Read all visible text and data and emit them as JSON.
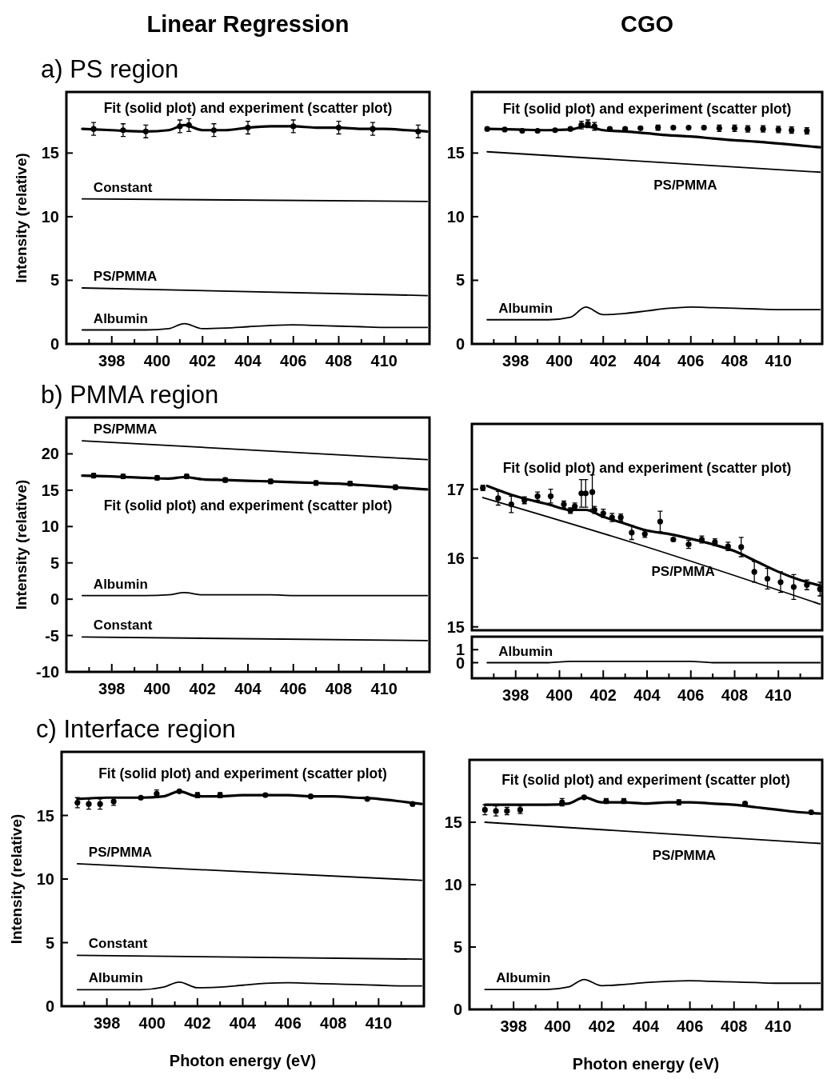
{
  "chart_data": [
    {
      "type": "line",
      "title": "Linear Regression",
      "subtitle": "a) PS region",
      "ylabel": "Intensity (relative)",
      "annotations": [
        "Fit (solid plot) and experiment (scatter plot)"
      ],
      "x": [
        396.7,
        398,
        399.5,
        400.5,
        401.2,
        402,
        403,
        404,
        405,
        406,
        407,
        408,
        409,
        410,
        411,
        411.9
      ],
      "xlim": [
        396,
        412
      ],
      "xticks": [
        {
          "value": 397,
          "label": null
        },
        398,
        {
          "value": 399,
          "label": null
        },
        400,
        {
          "value": 401,
          "label": null
        },
        402,
        {
          "value": 403,
          "label": null
        },
        404,
        {
          "value": 405,
          "label": null
        },
        406,
        {
          "value": 407,
          "label": null
        },
        408,
        {
          "value": 409,
          "label": null
        },
        410,
        {
          "value": 411,
          "label": null
        }
      ],
      "ylim": [
        0,
        19.8
      ],
      "yticks": [
        0,
        5,
        10,
        15
      ],
      "series": [
        {
          "color": "#000000",
          "values": [
            16.9,
            16.8,
            16.7,
            16.8,
            17.2,
            16.8,
            16.8,
            17.0,
            17.1,
            17.1,
            17.0,
            17.0,
            16.9,
            16.9,
            16.8,
            16.7
          ]
        },
        {
          "type": "scatter",
          "marker": "circle",
          "color": "#000000",
          "x": [
            397.2,
            398.5,
            399.5,
            401,
            401.4,
            402.5,
            404,
            406,
            408,
            409.5,
            411.5
          ],
          "values": [
            16.9,
            16.8,
            16.7,
            17.1,
            17.2,
            16.8,
            17.0,
            17.1,
            17.0,
            16.9,
            16.7
          ],
          "errors": [
            0.5,
            0.5,
            0.5,
            0.5,
            0.5,
            0.5,
            0.5,
            0.5,
            0.5,
            0.5,
            0.5
          ]
        },
        {
          "name": "Constant",
          "color": "#000000",
          "x": [
            396.7,
            411.9
          ],
          "values": [
            11.4,
            11.2
          ]
        },
        {
          "name": "PS/PMMA",
          "color": "#000000",
          "x": [
            396.7,
            411.9
          ],
          "values": [
            4.4,
            3.8
          ]
        },
        {
          "name": "Albumin",
          "color": "#000000",
          "values": [
            1.1,
            1.1,
            1.1,
            1.2,
            1.6,
            1.2,
            1.25,
            1.35,
            1.45,
            1.5,
            1.45,
            1.4,
            1.35,
            1.3,
            1.3,
            1.3
          ]
        }
      ]
    },
    {
      "type": "line",
      "title": "CGO",
      "annotations": [
        "Fit (solid plot) and experiment (scatter plot)"
      ],
      "x": [
        396.7,
        398,
        399.5,
        400.5,
        401.2,
        402,
        403,
        404,
        405,
        406,
        407,
        408,
        409,
        410,
        411,
        411.9
      ],
      "xlim": [
        396,
        412
      ],
      "xticks": [
        {
          "value": 397,
          "label": null
        },
        398,
        {
          "value": 399,
          "label": null
        },
        400,
        {
          "value": 401,
          "label": null
        },
        402,
        {
          "value": 403,
          "label": null
        },
        404,
        {
          "value": 405,
          "label": null
        },
        406,
        {
          "value": 407,
          "label": null
        },
        408,
        {
          "value": 409,
          "label": null
        },
        410,
        {
          "value": 411,
          "label": null
        }
      ],
      "ylim": [
        0,
        19.8
      ],
      "yticks": [
        0,
        5,
        10,
        15
      ],
      "series": [
        {
          "color": "#000000",
          "values": [
            16.9,
            16.85,
            16.8,
            16.85,
            17.1,
            16.8,
            16.7,
            16.55,
            16.4,
            16.3,
            16.15,
            16.0,
            15.9,
            15.75,
            15.6,
            15.45
          ]
        },
        {
          "type": "scatter",
          "marker": "circle",
          "color": "#000000",
          "x": [
            396.7,
            397.5,
            398.3,
            399,
            399.8,
            400.5,
            401,
            401.3,
            401.6,
            402.3,
            403,
            403.7,
            404.5,
            405.2,
            405.9,
            406.6,
            407.3,
            408,
            408.6,
            409.3,
            410,
            410.6,
            411.3
          ],
          "values": [
            16.9,
            16.85,
            16.75,
            16.75,
            16.8,
            16.9,
            17.2,
            17.3,
            17.1,
            16.9,
            16.9,
            16.95,
            17.0,
            17.0,
            17.0,
            17.0,
            16.95,
            16.95,
            16.9,
            16.9,
            16.85,
            16.8,
            16.75
          ],
          "errors": [
            0.1,
            0.1,
            0.1,
            0.1,
            0.1,
            0.1,
            0.3,
            0.3,
            0.3,
            0.1,
            0.1,
            0.1,
            0.2,
            0.1,
            0.1,
            0.1,
            0.25,
            0.25,
            0.25,
            0.25,
            0.25,
            0.25,
            0.25
          ]
        },
        {
          "name": "PS/PMMA",
          "color": "#000000",
          "x": [
            396.7,
            411.9
          ],
          "values": [
            15.1,
            13.5
          ]
        },
        {
          "name": "Albumin",
          "color": "#000000",
          "values": [
            1.9,
            1.9,
            1.9,
            2.1,
            2.9,
            2.3,
            2.4,
            2.6,
            2.8,
            2.9,
            2.85,
            2.8,
            2.75,
            2.7,
            2.7,
            2.7
          ]
        }
      ]
    },
    {
      "type": "line",
      "subtitle": "b) PMMA region",
      "ylabel": "Intensity (relative)",
      "annotations": [
        "Fit (solid plot) and experiment (scatter plot)"
      ],
      "x": [
        396.7,
        398,
        399.5,
        400.5,
        401.2,
        402,
        403,
        404,
        405,
        406,
        407,
        408,
        409,
        410,
        411,
        411.9
      ],
      "xlim": [
        396,
        412
      ],
      "xticks": [
        {
          "value": 397,
          "label": null
        },
        398,
        {
          "value": 399,
          "label": null
        },
        400,
        {
          "value": 401,
          "label": null
        },
        402,
        {
          "value": 403,
          "label": null
        },
        404,
        {
          "value": 405,
          "label": null
        },
        406,
        {
          "value": 407,
          "label": null
        },
        408,
        {
          "value": 409,
          "label": null
        },
        410,
        {
          "value": 411,
          "label": null
        }
      ],
      "ylim": [
        -10,
        25
      ],
      "yticks": [
        -10,
        -5,
        0,
        5,
        10,
        15,
        20
      ],
      "series": [
        {
          "color": "#000000",
          "values": [
            17.0,
            16.9,
            16.7,
            16.6,
            16.8,
            16.5,
            16.4,
            16.3,
            16.2,
            16.1,
            16.0,
            15.9,
            15.7,
            15.5,
            15.3,
            15.1
          ]
        },
        {
          "type": "scatter",
          "marker": "circle",
          "color": "#000000",
          "x": [
            397.2,
            398.5,
            400,
            401.3,
            403,
            405,
            407,
            408.5,
            410.5
          ],
          "values": [
            17.0,
            16.9,
            16.7,
            16.9,
            16.4,
            16.2,
            16.0,
            15.9,
            15.4
          ],
          "errors": [
            0.3,
            0.3,
            0.3,
            0.3,
            0.3,
            0.3,
            0.3,
            0.3,
            0.3
          ]
        },
        {
          "name": "PS/PMMA",
          "color": "#000000",
          "x": [
            396.7,
            411.9
          ],
          "values": [
            21.8,
            19.2
          ]
        },
        {
          "name": "Albumin",
          "color": "#000000",
          "values": [
            0.5,
            0.5,
            0.5,
            0.6,
            0.9,
            0.6,
            0.6,
            0.6,
            0.6,
            0.5,
            0.5,
            0.5,
            0.5,
            0.5,
            0.5,
            0.5
          ]
        },
        {
          "name": "Constant",
          "color": "#000000",
          "x": [
            396.7,
            411.9
          ],
          "values": [
            -5.2,
            -5.7
          ]
        }
      ]
    },
    {
      "type": "line",
      "tick_labels": "y",
      "annotations": [
        "Fit (solid plot) and experiment (scatter plot)"
      ],
      "x": [
        396.7,
        398,
        399.5,
        400.5,
        401.2,
        402,
        403,
        404,
        405,
        406,
        407,
        408,
        409,
        410,
        411,
        411.9
      ],
      "xlim": [
        396,
        412
      ],
      "ylim": [
        14.95,
        17.95
      ],
      "yticks": [
        15,
        16,
        17
      ],
      "series": [
        {
          "color": "#000000",
          "values": [
            17.05,
            16.9,
            16.78,
            16.7,
            16.7,
            16.6,
            16.5,
            16.4,
            16.35,
            16.28,
            16.2,
            16.1,
            15.95,
            15.8,
            15.68,
            15.6
          ]
        },
        {
          "type": "scatter",
          "marker": "circle",
          "color": "#000000",
          "x": [
            396.5,
            397.2,
            397.8,
            398.4,
            399.0,
            399.6,
            400.2,
            400.5,
            400.7,
            401.0,
            401.2,
            401.5,
            401.6,
            402.0,
            402.4,
            402.8,
            403.3,
            403.9,
            404.6,
            405.2,
            405.9,
            406.5,
            407.1,
            407.7,
            408.3,
            408.9,
            409.5,
            410.1,
            410.7,
            411.3,
            411.9
          ],
          "values": [
            17.02,
            16.87,
            16.78,
            16.84,
            16.9,
            16.9,
            16.78,
            16.69,
            16.75,
            16.94,
            16.94,
            16.96,
            16.7,
            16.65,
            16.59,
            16.59,
            16.37,
            16.35,
            16.53,
            16.27,
            16.2,
            16.27,
            16.23,
            16.17,
            16.16,
            15.8,
            15.7,
            15.65,
            15.58,
            15.61,
            15.55
          ],
          "errors": [
            0.04,
            0.1,
            0.12,
            0.05,
            0.06,
            0.1,
            0.05,
            0.04,
            0.05,
            0.2,
            0.2,
            0.25,
            0.05,
            0.06,
            0.06,
            0.05,
            0.1,
            0.05,
            0.15,
            0.02,
            0.06,
            0.05,
            0.05,
            0.06,
            0.14,
            0.15,
            0.15,
            0.15,
            0.18,
            0.07,
            0.1
          ]
        },
        {
          "name": "PS/PMMA",
          "color": "#000000",
          "x": [
            396.5,
            403.6,
            411.9
          ],
          "values": [
            16.88,
            16.2,
            15.33
          ]
        }
      ]
    },
    {
      "type": "line",
      "x": [
        396.7,
        398,
        399.5,
        400.5,
        401.2,
        402,
        403,
        404,
        405,
        406,
        407,
        408,
        409,
        410,
        411,
        411.9
      ],
      "xlim": [
        396,
        412
      ],
      "xticks": [
        {
          "value": 397,
          "label": null
        },
        398,
        {
          "value": 399,
          "label": null
        },
        400,
        {
          "value": 401,
          "label": null
        },
        402,
        {
          "value": 403,
          "label": null
        },
        404,
        {
          "value": 405,
          "label": null
        },
        406,
        {
          "value": 407,
          "label": null
        },
        408,
        {
          "value": 409,
          "label": null
        },
        410,
        {
          "value": 411,
          "label": null
        }
      ],
      "ylim": [
        -1.2,
        2
      ],
      "yticks": [
        0,
        1
      ],
      "series": [
        {
          "name": "Albumin",
          "color": "#000000",
          "values": [
            0,
            0,
            0,
            0.1,
            0.1,
            0.1,
            0.1,
            0.1,
            0.1,
            0.1,
            0,
            0,
            0,
            0,
            0,
            0
          ]
        }
      ]
    },
    {
      "type": "line",
      "subtitle": "c) Interface region",
      "xlabel": "Photon energy (eV)",
      "ylabel": "Intensity (relative)",
      "annotations": [
        "Fit (solid plot) and experiment (scatter plot)"
      ],
      "x": [
        396.7,
        398,
        399.5,
        400.5,
        401.2,
        402,
        403,
        404,
        405,
        406,
        407,
        408,
        409,
        410,
        411,
        411.9
      ],
      "xlim": [
        396,
        412
      ],
      "xticks": [
        {
          "value": 397,
          "label": null
        },
        398,
        {
          "value": 399,
          "label": null
        },
        400,
        {
          "value": 401,
          "label": null
        },
        402,
        {
          "value": 403,
          "label": null
        },
        404,
        {
          "value": 405,
          "label": null
        },
        406,
        {
          "value": 407,
          "label": null
        },
        408,
        {
          "value": 409,
          "label": null
        },
        410,
        {
          "value": 411,
          "label": null
        }
      ],
      "ylim": [
        0,
        20
      ],
      "yticks": [
        0,
        5,
        10,
        15
      ],
      "series": [
        {
          "color": "#000000",
          "values": [
            16.3,
            16.4,
            16.4,
            16.5,
            16.9,
            16.5,
            16.5,
            16.6,
            16.6,
            16.6,
            16.5,
            16.5,
            16.4,
            16.3,
            16.1,
            15.9
          ]
        },
        {
          "type": "scatter",
          "marker": "circle",
          "color": "#000000",
          "x": [
            396.7,
            397.2,
            397.7,
            398.3,
            399.5,
            400.2,
            401.2,
            402,
            403,
            405,
            407,
            409.5,
            411.5
          ],
          "values": [
            16.0,
            15.9,
            15.9,
            16.1,
            16.4,
            16.7,
            16.9,
            16.6,
            16.6,
            16.6,
            16.5,
            16.3,
            15.9
          ],
          "errors": [
            0.4,
            0.4,
            0.4,
            0.3,
            0.1,
            0.3,
            0.1,
            0.2,
            0.2,
            0.1,
            0.1,
            0.1,
            0.1
          ]
        },
        {
          "name": "PS/PMMA",
          "color": "#000000",
          "x": [
            396.7,
            411.9
          ],
          "values": [
            11.2,
            9.9
          ]
        },
        {
          "name": "Constant",
          "color": "#000000",
          "x": [
            396.7,
            411.9
          ],
          "values": [
            4.0,
            3.7
          ]
        },
        {
          "name": "Albumin",
          "color": "#000000",
          "values": [
            1.3,
            1.3,
            1.3,
            1.5,
            1.9,
            1.45,
            1.5,
            1.65,
            1.8,
            1.85,
            1.8,
            1.75,
            1.7,
            1.65,
            1.6,
            1.6
          ]
        }
      ]
    },
    {
      "type": "line",
      "xlabel": "Photon energy (eV)",
      "annotations": [
        "Fit (solid plot) and experiment (scatter plot)"
      ],
      "x": [
        396.7,
        398,
        399.5,
        400.5,
        401.2,
        402,
        403,
        404,
        405,
        406,
        407,
        408,
        409,
        410,
        411,
        411.9
      ],
      "xlim": [
        396,
        412
      ],
      "xticks": [
        {
          "value": 397,
          "label": null
        },
        398,
        {
          "value": 399,
          "label": null
        },
        400,
        {
          "value": 401,
          "label": null
        },
        402,
        {
          "value": 403,
          "label": null
        },
        404,
        {
          "value": 405,
          "label": null
        },
        406,
        {
          "value": 407,
          "label": null
        },
        408,
        {
          "value": 409,
          "label": null
        },
        410,
        {
          "value": 411,
          "label": null
        }
      ],
      "ylim": [
        0,
        20
      ],
      "yticks": [
        0,
        5,
        10,
        15
      ],
      "series": [
        {
          "color": "#000000",
          "values": [
            16.4,
            16.4,
            16.4,
            16.5,
            17.0,
            16.6,
            16.6,
            16.5,
            16.6,
            16.6,
            16.5,
            16.4,
            16.2,
            16.0,
            15.8,
            15.7
          ]
        },
        {
          "type": "scatter",
          "marker": "circle",
          "color": "#000000",
          "x": [
            396.7,
            397.2,
            397.7,
            398.3,
            400.2,
            401.2,
            402.2,
            403,
            405.5,
            408.5,
            411.5
          ],
          "values": [
            16.0,
            15.9,
            15.9,
            16.0,
            16.6,
            17.0,
            16.7,
            16.7,
            16.6,
            16.5,
            15.8
          ],
          "errors": [
            0.4,
            0.4,
            0.3,
            0.3,
            0.3,
            0.1,
            0.2,
            0.2,
            0.2,
            0.1,
            0.1
          ]
        },
        {
          "name": "PS/PMMA",
          "color": "#000000",
          "x": [
            396.7,
            411.9
          ],
          "values": [
            15.0,
            13.3
          ]
        },
        {
          "name": "Albumin",
          "color": "#000000",
          "values": [
            1.6,
            1.6,
            1.6,
            1.8,
            2.4,
            1.9,
            2.0,
            2.15,
            2.25,
            2.3,
            2.25,
            2.2,
            2.15,
            2.1,
            2.1,
            2.1
          ]
        }
      ]
    }
  ]
}
